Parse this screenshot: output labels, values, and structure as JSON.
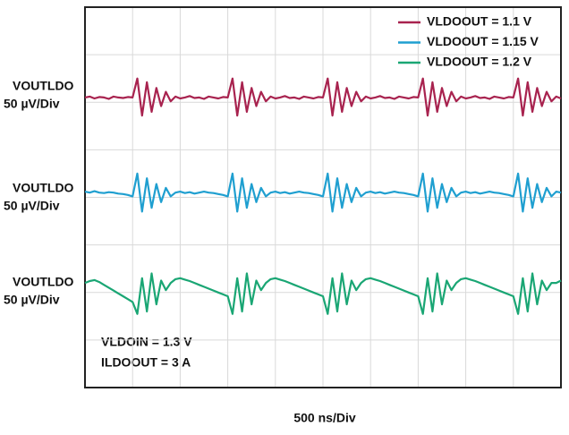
{
  "chart_data": {
    "type": "line",
    "x_label": "500 ns/Div",
    "channel_labels": [
      {
        "name": "VOUTLDO",
        "scale": "50 µV/Div"
      },
      {
        "name": "VOUTLDO",
        "scale": "50 µV/Div"
      },
      {
        "name": "VOUTLDO",
        "scale": "50 µV/Div"
      }
    ],
    "annotations": [
      "VLDOIN = 1.3 V",
      "ILDOOUT = 3 A"
    ],
    "xlim": [
      0,
      10
    ],
    "ylim": [
      0,
      8
    ],
    "xticks": [
      0,
      1,
      2,
      3,
      4,
      5,
      6,
      7,
      8,
      9,
      10
    ],
    "yticks": [
      0,
      1,
      2,
      3,
      4,
      5,
      6,
      7,
      8
    ],
    "grid": true,
    "legend": "top-right",
    "x": [
      0,
      0.1,
      0.2,
      0.3,
      0.4,
      0.5,
      0.6,
      0.7,
      0.8,
      0.9,
      1,
      1.1,
      1.2,
      1.3,
      1.4,
      1.5,
      1.6,
      1.7,
      1.8,
      1.9,
      2,
      2.1,
      2.2,
      2.3,
      2.4,
      2.5,
      2.6,
      2.7,
      2.8,
      2.9,
      3,
      3.1,
      3.2,
      3.3,
      3.4,
      3.5,
      3.6,
      3.7,
      3.8,
      3.9,
      4,
      4.1,
      4.2,
      4.3,
      4.4,
      4.5,
      4.6,
      4.7,
      4.8,
      4.9,
      5,
      5.1,
      5.2,
      5.3,
      5.4,
      5.5,
      5.6,
      5.7,
      5.8,
      5.9,
      6,
      6.1,
      6.2,
      6.3,
      6.4,
      6.5,
      6.6,
      6.7,
      6.8,
      6.9,
      7,
      7.1,
      7.2,
      7.3,
      7.4,
      7.5,
      7.6,
      7.7,
      7.8,
      7.9,
      8,
      8.1,
      8.2,
      8.3,
      8.4,
      8.5,
      8.6,
      8.7,
      8.8,
      8.9,
      9,
      9.1,
      9.2,
      9.3,
      9.4,
      9.5,
      9.6,
      9.7,
      9.8,
      9.9,
      10
    ],
    "series": [
      {
        "name": "VLDOOUT = 1.1 V",
        "color": "#a8234f",
        "values": [
          6.1,
          6.12,
          6.08,
          6.11,
          6.1,
          6.07,
          6.12,
          6.1,
          6.09,
          6.11,
          6.1,
          6.5,
          5.72,
          6.42,
          5.8,
          6.3,
          5.92,
          6.22,
          6.02,
          6.12,
          6.08,
          6.1,
          6.13,
          6.09,
          6.1,
          6.07,
          6.12,
          6.1,
          6.08,
          6.11,
          6.1,
          6.5,
          5.72,
          6.42,
          5.8,
          6.3,
          5.92,
          6.22,
          6.02,
          6.12,
          6.08,
          6.1,
          6.13,
          6.09,
          6.1,
          6.07,
          6.12,
          6.1,
          6.08,
          6.11,
          6.1,
          6.5,
          5.72,
          6.42,
          5.8,
          6.3,
          5.92,
          6.22,
          6.02,
          6.12,
          6.08,
          6.1,
          6.13,
          6.09,
          6.1,
          6.07,
          6.12,
          6.1,
          6.08,
          6.11,
          6.1,
          6.5,
          5.72,
          6.42,
          5.8,
          6.3,
          5.92,
          6.22,
          6.02,
          6.12,
          6.08,
          6.1,
          6.13,
          6.09,
          6.1,
          6.07,
          6.12,
          6.1,
          6.08,
          6.11,
          6.1,
          6.5,
          5.72,
          6.42,
          5.8,
          6.3,
          5.92,
          6.22,
          6.02,
          6.12,
          6.08
        ]
      },
      {
        "name": "VLDOOUT = 1.15 V",
        "color": "#1f9fd0",
        "values": [
          4.12,
          4.1,
          4.13,
          4.1,
          4.09,
          4.11,
          4.1,
          4.08,
          4.07,
          4.05,
          4.02,
          4.5,
          3.7,
          4.4,
          3.78,
          4.28,
          3.9,
          4.2,
          4.02,
          4.1,
          4.12,
          4.09,
          4.11,
          4.08,
          4.1,
          4.12,
          4.1,
          4.09,
          4.07,
          4.05,
          4.02,
          4.5,
          3.7,
          4.4,
          3.78,
          4.28,
          3.9,
          4.2,
          4.02,
          4.1,
          4.12,
          4.09,
          4.11,
          4.08,
          4.1,
          4.12,
          4.1,
          4.09,
          4.07,
          4.05,
          4.02,
          4.5,
          3.7,
          4.4,
          3.78,
          4.28,
          3.9,
          4.2,
          4.02,
          4.1,
          4.12,
          4.09,
          4.11,
          4.08,
          4.1,
          4.12,
          4.1,
          4.09,
          4.07,
          4.05,
          4.02,
          4.5,
          3.7,
          4.4,
          3.78,
          4.28,
          3.9,
          4.2,
          4.02,
          4.1,
          4.12,
          4.09,
          4.11,
          4.08,
          4.1,
          4.12,
          4.1,
          4.09,
          4.07,
          4.05,
          4.02,
          4.5,
          3.7,
          4.4,
          3.78,
          4.28,
          3.9,
          4.2,
          4.02,
          4.12,
          4.1
        ]
      },
      {
        "name": "VLDOOUT = 1.2 V",
        "color": "#1aa674",
        "values": [
          2.2,
          2.24,
          2.26,
          2.22,
          2.16,
          2.1,
          2.04,
          1.98,
          1.92,
          1.86,
          1.8,
          1.55,
          2.3,
          1.6,
          2.4,
          1.75,
          2.25,
          2.05,
          2.2,
          2.28,
          2.3,
          2.27,
          2.24,
          2.2,
          2.16,
          2.12,
          2.08,
          2.04,
          2.0,
          1.96,
          1.92,
          1.55,
          2.3,
          1.6,
          2.4,
          1.75,
          2.25,
          2.05,
          2.2,
          2.28,
          2.3,
          2.27,
          2.24,
          2.2,
          2.16,
          2.12,
          2.08,
          2.04,
          2.0,
          1.96,
          1.92,
          1.55,
          2.3,
          1.6,
          2.4,
          1.75,
          2.25,
          2.05,
          2.2,
          2.28,
          2.3,
          2.27,
          2.24,
          2.2,
          2.16,
          2.12,
          2.08,
          2.04,
          2.0,
          1.96,
          1.92,
          1.55,
          2.3,
          1.6,
          2.4,
          1.75,
          2.25,
          2.05,
          2.2,
          2.28,
          2.3,
          2.27,
          2.24,
          2.2,
          2.16,
          2.12,
          2.08,
          2.04,
          2.0,
          1.96,
          1.92,
          1.55,
          2.3,
          1.6,
          2.4,
          1.75,
          2.25,
          2.05,
          2.2,
          2.2,
          2.25
        ]
      }
    ]
  }
}
